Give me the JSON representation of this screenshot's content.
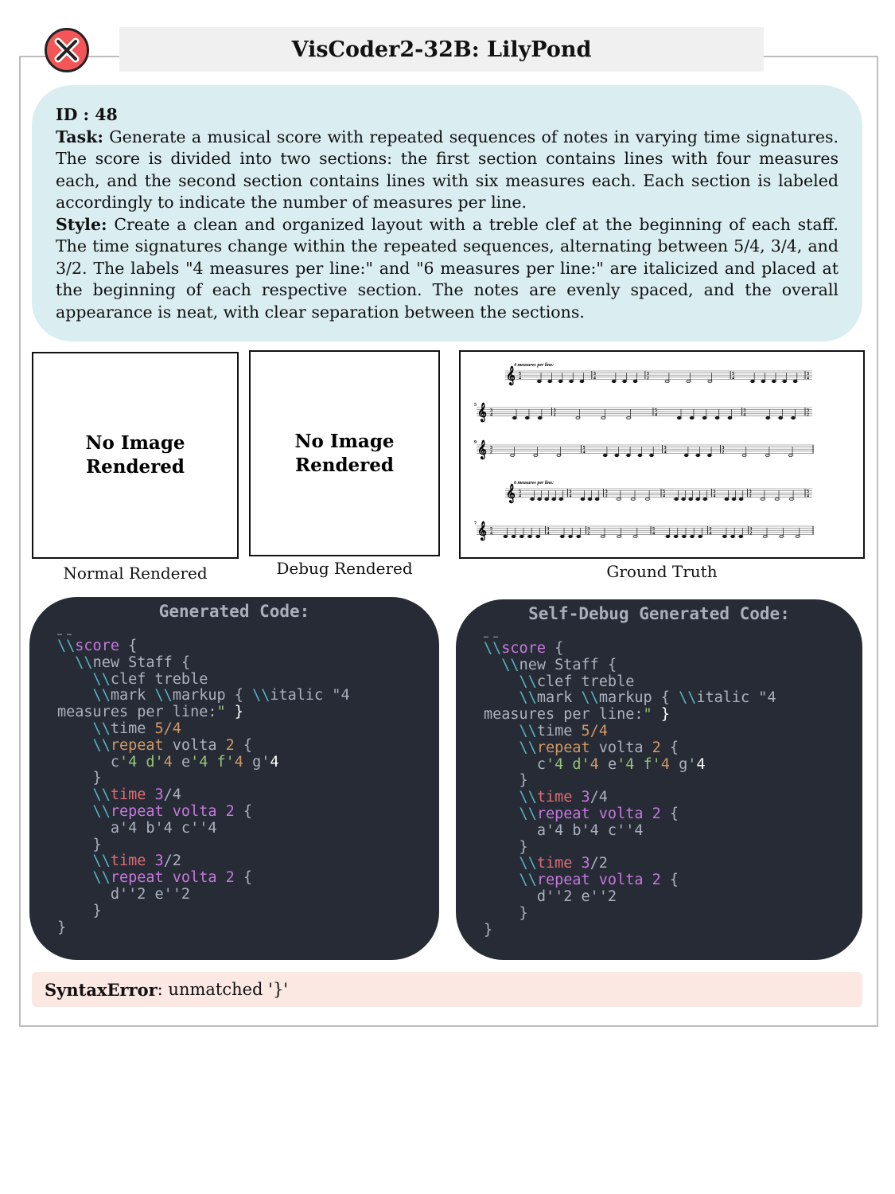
{
  "header": {
    "title": "VisCoder2-32B: LilyPond",
    "status_icon": "fail-x-icon",
    "status_color": "#f25656"
  },
  "task": {
    "id_label": "ID : 48",
    "task_label": "Task:",
    "task_text": "Generate a musical score with repeated sequences of notes in varying time signatures. The score is divided into two sections: the first section contains lines with four measures each, and the second section contains lines with six measures each. Each section is labeled accordingly to indicate the number of measures per line.",
    "style_label": "Style:",
    "style_text": "Create a clean and organized layout with a treble clef at the beginning of each staff. The time signatures change within the repeated sequences, alternating between 5/4, 3/4, and 3/2. The labels \"4 measures per line:\" and \"6 measures per line:\" are italicized and placed at the beginning of each respective section. The notes are evenly spaced, and the overall appearance is neat, with clear separation between the sections."
  },
  "panels": {
    "normal": {
      "text1": "No Image",
      "text2": "Rendered",
      "caption": "Normal Rendered"
    },
    "debug": {
      "text1": "No Image",
      "text2": "Rendered",
      "caption": "Debug Rendered"
    },
    "truth": {
      "caption": "Ground Truth",
      "systems": [
        {
          "label": "4 measures per line:",
          "number": "",
          "measures": [
            "5/4",
            "3/4",
            "3/2",
            "5/4"
          ],
          "trailing": "3/4"
        },
        {
          "label": "",
          "number": "5",
          "measures": [
            "3/4",
            "3/2",
            "5/4",
            "3/4"
          ],
          "trailing": "3/2"
        },
        {
          "label": "",
          "number": "9",
          "measures": [
            "3/2",
            "5/4",
            "3/4",
            "3/2"
          ],
          "trailing": ""
        },
        {
          "label": "6 measures per line:",
          "number": "",
          "measures": [
            "5/4",
            "3/4",
            "3/2",
            "5/4",
            "3/4",
            "3/2"
          ],
          "trailing": "5/4"
        },
        {
          "label": "",
          "number": "7",
          "measures": [
            "5/4",
            "3/4",
            "3/2",
            "5/4",
            "3/4",
            "3/2"
          ],
          "trailing": ""
        }
      ]
    }
  },
  "code_panels": [
    {
      "title": "Generated Code:"
    },
    {
      "title": "Self-Debug Generated Code:"
    }
  ],
  "code_lines": [
    [
      [
        "… …",
        "tx"
      ]
    ],
    [
      [
        "\\\\",
        "cy"
      ],
      [
        "score",
        "pu"
      ],
      [
        " {",
        "tx"
      ]
    ],
    [
      [
        "  \\\\",
        "cy"
      ],
      [
        "new Staff {",
        "tx"
      ]
    ],
    [
      [
        "    \\\\",
        "cy"
      ],
      [
        "clef treble",
        "tx"
      ]
    ],
    [
      [
        "    \\\\",
        "cy"
      ],
      [
        "mark ",
        "tx"
      ],
      [
        "\\\\",
        "cy"
      ],
      [
        "markup { ",
        "tx"
      ],
      [
        "\\\\",
        "cy"
      ],
      [
        "italic \"4",
        "tx"
      ]
    ],
    [
      [
        "measures per line:",
        "tx"
      ],
      [
        "\"",
        "gr"
      ],
      [
        " }",
        "wh"
      ]
    ],
    [
      [
        "    \\\\",
        "cy"
      ],
      [
        "time ",
        "tx"
      ],
      [
        "5/4",
        "or"
      ]
    ],
    [
      [
        "    \\\\",
        "cy"
      ],
      [
        "repeat",
        "or"
      ],
      [
        " volta ",
        "tx"
      ],
      [
        "2",
        "or"
      ],
      [
        " {",
        "tx"
      ]
    ],
    [
      [
        "      c",
        "tx"
      ],
      [
        "'4 d'",
        "gr"
      ],
      [
        "4",
        "or"
      ],
      [
        " e",
        "tx"
      ],
      [
        "'4 f'",
        "gr"
      ],
      [
        "4",
        "or"
      ],
      [
        " g'",
        "tx"
      ],
      [
        "4",
        "wh"
      ]
    ],
    [
      [
        "    }",
        "tx"
      ]
    ],
    [
      [
        "    \\\\",
        "cy"
      ],
      [
        "time ",
        "rd"
      ],
      [
        "3",
        "pu"
      ],
      [
        "/4",
        "tx"
      ]
    ],
    [
      [
        "    \\\\",
        "cy"
      ],
      [
        "repeat volta ",
        "pu"
      ],
      [
        "2",
        "pu"
      ],
      [
        " {",
        "tx"
      ]
    ],
    [
      [
        "      a'4 b'4 c''4",
        "tx"
      ]
    ],
    [
      [
        "    }",
        "tx"
      ]
    ],
    [
      [
        "    \\\\",
        "cy"
      ],
      [
        "time ",
        "rd"
      ],
      [
        "3",
        "pu"
      ],
      [
        "/2",
        "tx"
      ]
    ],
    [
      [
        "    \\\\",
        "cy"
      ],
      [
        "repeat volta ",
        "pu"
      ],
      [
        "2",
        "pu"
      ],
      [
        " {",
        "tx"
      ]
    ],
    [
      [
        "      d''2 e''2",
        "tx"
      ]
    ],
    [
      [
        "    }",
        "tx"
      ]
    ],
    [
      [
        "}",
        "tx"
      ]
    ]
  ],
  "error": {
    "type": "SyntaxError",
    "message": ": unmatched '}'"
  }
}
